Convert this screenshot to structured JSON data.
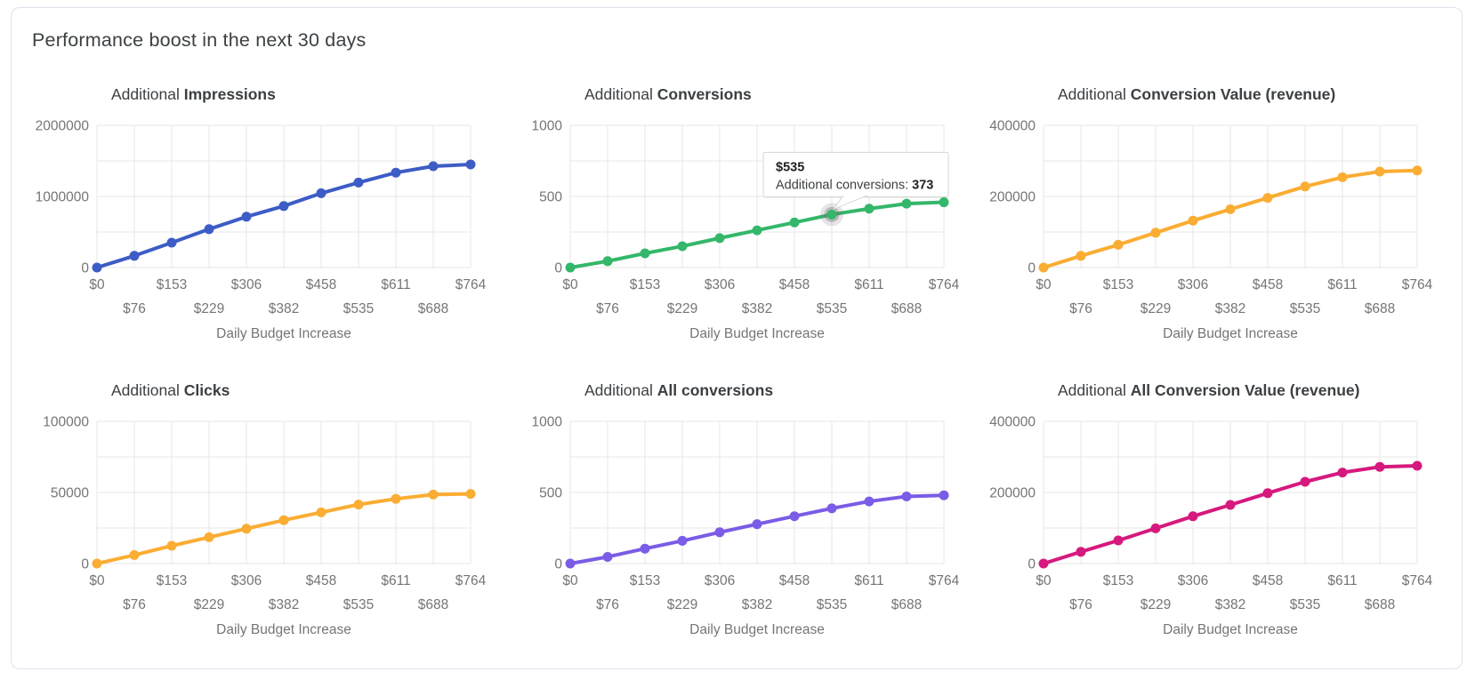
{
  "page": {
    "title": "Performance boost in the next 30 days"
  },
  "chart_data": {
    "type": "line",
    "xlabel": "Daily Budget Increase",
    "categories": [
      "$0",
      "$76",
      "$153",
      "$229",
      "$306",
      "$382",
      "$458",
      "$535",
      "$611",
      "$688",
      "$764"
    ],
    "grid": "on",
    "charts": [
      {
        "title_prefix": "Additional",
        "title_metric": "Impressions",
        "color": "#3d5cc5",
        "ylim": [
          0,
          2000000
        ],
        "y_tick_labels": [
          "0",
          "1000000",
          "2000000"
        ],
        "values": [
          0,
          165000,
          350000,
          540000,
          715000,
          865000,
          1045000,
          1195000,
          1335000,
          1425000,
          1450000
        ]
      },
      {
        "title_prefix": "Additional",
        "title_metric": "Conversions",
        "color": "#34b76a",
        "ylim": [
          0,
          1000
        ],
        "y_tick_labels": [
          "0",
          "500",
          "1000"
        ],
        "values": [
          0,
          45,
          100,
          150,
          207,
          262,
          317,
          373,
          414,
          449,
          459
        ]
      },
      {
        "title_prefix": "Additional",
        "title_metric": "Conversion Value (revenue)",
        "color": "#faad33",
        "ylim": [
          0,
          400000
        ],
        "y_tick_labels": [
          "0",
          "200000",
          "400000"
        ],
        "values": [
          0,
          33000,
          64000,
          98000,
          132000,
          164000,
          196000,
          228000,
          254000,
          270000,
          273000
        ]
      },
      {
        "title_prefix": "Additional",
        "title_metric": "Clicks",
        "color": "#faad33",
        "ylim": [
          0,
          100000
        ],
        "y_tick_labels": [
          "0",
          "50000",
          "100000"
        ],
        "values": [
          0,
          6000,
          12500,
          18500,
          24500,
          30500,
          36000,
          41500,
          45500,
          48500,
          49000
        ]
      },
      {
        "title_prefix": "Additional",
        "title_metric": "All conversions",
        "color": "#7a5ce6",
        "ylim": [
          0,
          1000
        ],
        "y_tick_labels": [
          "0",
          "500",
          "1000"
        ],
        "values": [
          0,
          47,
          105,
          160,
          220,
          277,
          333,
          388,
          437,
          472,
          480
        ]
      },
      {
        "title_prefix": "Additional",
        "title_metric": "All Conversion Value (revenue)",
        "color": "#d6197e",
        "ylim": [
          0,
          400000
        ],
        "y_tick_labels": [
          "0",
          "200000",
          "400000"
        ],
        "values": [
          0,
          33000,
          65000,
          99000,
          133000,
          165000,
          198000,
          230000,
          256000,
          272000,
          275000
        ]
      }
    ],
    "tooltip": {
      "chart_index": 1,
      "point_index": 7,
      "x_label": "$535",
      "label": "Additional conversions: ",
      "value": "373"
    }
  }
}
